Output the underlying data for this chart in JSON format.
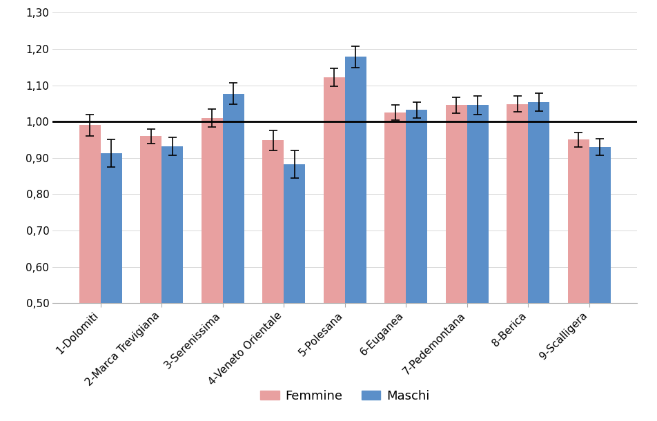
{
  "categories": [
    "1-Dolomiti",
    "2-Marca Trevigiana",
    "3-Serenissima",
    "4-Veneto Orientale",
    "5-Polesana",
    "6-Euganea",
    "7-Pedemontana",
    "8-Berica",
    "9-Scalligera"
  ],
  "femmine_values": [
    0.99,
    0.96,
    1.01,
    0.948,
    1.122,
    1.025,
    1.045,
    1.048,
    0.95
  ],
  "maschi_values": [
    0.913,
    0.932,
    1.077,
    0.882,
    1.178,
    1.032,
    1.045,
    1.053,
    0.93
  ],
  "femmine_err_low": [
    0.03,
    0.02,
    0.025,
    0.028,
    0.025,
    0.02,
    0.022,
    0.022,
    0.02
  ],
  "femmine_err_high": [
    0.03,
    0.02,
    0.025,
    0.028,
    0.025,
    0.02,
    0.022,
    0.022,
    0.02
  ],
  "maschi_err_low": [
    0.038,
    0.025,
    0.03,
    0.038,
    0.03,
    0.022,
    0.025,
    0.025,
    0.022
  ],
  "maschi_err_high": [
    0.038,
    0.025,
    0.03,
    0.038,
    0.03,
    0.022,
    0.025,
    0.025,
    0.022
  ],
  "femmine_color": "#e8a0a0",
  "maschi_color": "#5b8fc9",
  "ylim": [
    0.5,
    1.3
  ],
  "ybase": 0.5,
  "yticks": [
    0.5,
    0.6,
    0.7,
    0.8,
    0.9,
    1.0,
    1.1,
    1.2,
    1.3
  ],
  "ytick_labels": [
    "0,50",
    "0,60",
    "0,70",
    "0,80",
    "0,90",
    "1,00",
    "1,10",
    "1,20",
    "1,30"
  ],
  "legend_femmine": "Femmine",
  "legend_maschi": "Maschi",
  "hline_y": 1.0,
  "bar_width": 0.35,
  "background_color": "#ffffff",
  "grid_color": "#d8d8d8"
}
